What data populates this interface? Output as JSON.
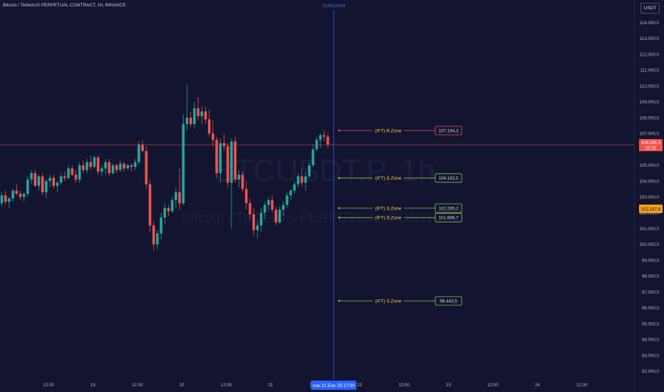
{
  "header": {
    "title": "Bitcoin / TetherUS PERPETUAL CONTRACT, 1h, BINANCE",
    "crosshair_date": "21/01/2024",
    "currency": "USDT"
  },
  "watermark": {
    "symbol": "BTCUSDT.P, 1h",
    "name": "Bitcoin / TetherUS PERPETUAL CONTRACT"
  },
  "colors": {
    "background": "#131530",
    "up": "#26a69a",
    "down": "#ef5350",
    "crosshair": "#2962ff",
    "zone_label": "#f5d142",
    "resistance": "#ef5350",
    "support": "#8bc34a",
    "current_price_bg": "#ef5350",
    "alt_price_bg": "#f59d1c"
  },
  "chart_data": {
    "type": "candlestick",
    "ylim": [
      91500,
      114800
    ],
    "y_ticks": [
      {
        "value": 92000,
        "label": "92.000,0"
      },
      {
        "value": 93000,
        "label": "93.000,0"
      },
      {
        "value": 94000,
        "label": "94.000,0"
      },
      {
        "value": 95000,
        "label": "95.000,0"
      },
      {
        "value": 96000,
        "label": "96.000,0"
      },
      {
        "value": 97000,
        "label": "97.000,0"
      },
      {
        "value": 98000,
        "label": "98.000,0"
      },
      {
        "value": 99000,
        "label": "99.000,0"
      },
      {
        "value": 100000,
        "label": "100.000,0"
      },
      {
        "value": 101000,
        "label": "101.000,0"
      },
      {
        "value": 102000,
        "label": "102.000,0"
      },
      {
        "value": 103000,
        "label": "103.000,0"
      },
      {
        "value": 104000,
        "label": "104.000,0"
      },
      {
        "value": 105000,
        "label": "105.000,0"
      },
      {
        "value": 107000,
        "label": "107.000,0"
      },
      {
        "value": 108000,
        "label": "108.000,0"
      },
      {
        "value": 109000,
        "label": "109.000,0"
      },
      {
        "value": 110000,
        "label": "110.000,0"
      },
      {
        "value": 111000,
        "label": "111.000,0"
      },
      {
        "value": 112000,
        "label": "112.000,0"
      },
      {
        "value": 113000,
        "label": "113.000,0"
      },
      {
        "value": 114000,
        "label": "114.000,0"
      }
    ],
    "x_ticks": [
      {
        "index": 12,
        "label": "12:00"
      },
      {
        "index": 24,
        "label": "19"
      },
      {
        "index": 36,
        "label": "12:00"
      },
      {
        "index": 48,
        "label": "20"
      },
      {
        "index": 60,
        "label": "12:00"
      },
      {
        "index": 72,
        "label": "21"
      },
      {
        "index": 84,
        "label": "12:00"
      },
      {
        "index": 96,
        "label": "22"
      },
      {
        "index": 108,
        "label": "12:00"
      },
      {
        "index": 120,
        "label": "23"
      },
      {
        "index": 132,
        "label": "12:00"
      },
      {
        "index": 144,
        "label": "24"
      },
      {
        "index": 156,
        "label": "12:00"
      }
    ],
    "crosshair": {
      "index": 89,
      "label": "mar 21 Ene '25   17:00"
    },
    "current_price": {
      "value": 106295.3,
      "label": "106.295,3",
      "countdown": "22:21"
    },
    "alt_price": {
      "value": 102247.6,
      "label": "102.247,6"
    },
    "zones": [
      {
        "label": "(IFT) R.Zone",
        "value": 107194.3,
        "value_label": "107.194,3",
        "kind": "resistance"
      },
      {
        "label": "(IFT) S.Zone",
        "value": 104192.5,
        "value_label": "104.192,5",
        "kind": "support"
      },
      {
        "label": "(IFT) S.Zone",
        "value": 102295.2,
        "value_label": "102.295,2",
        "kind": "support"
      },
      {
        "label": "(IFT) S.Zone",
        "value": 101696.7,
        "value_label": "101.696,7",
        "kind": "support"
      },
      {
        "label": "(IFT) S.Zone",
        "value": 96443.5,
        "value_label": "96.443,5",
        "kind": "support"
      }
    ],
    "candles": [
      [
        102600,
        103300,
        102400,
        103100
      ],
      [
        103100,
        103400,
        102500,
        102700
      ],
      [
        102700,
        103000,
        102300,
        102900
      ],
      [
        102900,
        103500,
        102700,
        103400
      ],
      [
        103400,
        103800,
        103100,
        103200
      ],
      [
        103200,
        103400,
        102800,
        103000
      ],
      [
        103000,
        103300,
        102700,
        103200
      ],
      [
        103200,
        104300,
        103000,
        104100
      ],
      [
        104100,
        104700,
        103800,
        104500
      ],
      [
        104500,
        104700,
        103600,
        103700
      ],
      [
        103700,
        104400,
        103400,
        104300
      ],
      [
        104300,
        104500,
        103100,
        103300
      ],
      [
        103300,
        104100,
        102900,
        104000
      ],
      [
        104000,
        104400,
        103600,
        104200
      ],
      [
        104200,
        104400,
        103500,
        103700
      ],
      [
        103700,
        104000,
        103300,
        103900
      ],
      [
        103900,
        104500,
        103800,
        104300
      ],
      [
        104300,
        104600,
        104000,
        104200
      ],
      [
        104200,
        105000,
        104100,
        104800
      ],
      [
        104800,
        105000,
        104300,
        104400
      ],
      [
        104400,
        104700,
        103900,
        104100
      ],
      [
        104100,
        105200,
        103900,
        105000
      ],
      [
        105000,
        105300,
        104500,
        104700
      ],
      [
        104700,
        105400,
        104500,
        105200
      ],
      [
        105200,
        105600,
        104700,
        104900
      ],
      [
        104900,
        105600,
        104800,
        105500
      ],
      [
        105500,
        105600,
        104400,
        104600
      ],
      [
        104600,
        105000,
        104300,
        104800
      ],
      [
        104800,
        105400,
        104400,
        105200
      ],
      [
        105200,
        105400,
        104300,
        104500
      ],
      [
        104500,
        105100,
        104400,
        105000
      ],
      [
        105000,
        105100,
        104500,
        104700
      ],
      [
        104700,
        105300,
        104600,
        105100
      ],
      [
        105100,
        105200,
        104600,
        104800
      ],
      [
        104800,
        105100,
        104700,
        105000
      ],
      [
        105000,
        105100,
        104600,
        104900
      ],
      [
        104900,
        105400,
        104700,
        105200
      ],
      [
        105200,
        106500,
        105000,
        106300
      ],
      [
        106300,
        106600,
        105800,
        105900
      ],
      [
        105900,
        106200,
        103500,
        103800
      ],
      [
        103800,
        104100,
        100800,
        101200
      ],
      [
        101200,
        101500,
        99600,
        100000
      ],
      [
        100000,
        100900,
        99700,
        100700
      ],
      [
        100700,
        102000,
        100300,
        101700
      ],
      [
        101700,
        102600,
        101300,
        102300
      ],
      [
        102300,
        102500,
        101800,
        102100
      ],
      [
        102100,
        103000,
        102000,
        102800
      ],
      [
        102800,
        103600,
        102300,
        103300
      ],
      [
        103300,
        104800,
        102200,
        102600
      ],
      [
        102600,
        108200,
        102500,
        107600
      ],
      [
        107600,
        110100,
        107200,
        108000
      ],
      [
        108000,
        108400,
        107400,
        107600
      ],
      [
        107600,
        109000,
        107300,
        108600
      ],
      [
        108600,
        109300,
        107800,
        108100
      ],
      [
        108100,
        108700,
        107600,
        108400
      ],
      [
        108400,
        108700,
        107600,
        107900
      ],
      [
        107900,
        108500,
        106800,
        107000
      ],
      [
        107000,
        107800,
        106200,
        106600
      ],
      [
        106600,
        106800,
        104200,
        104500
      ],
      [
        104500,
        106700,
        103900,
        106400
      ],
      [
        106400,
        107000,
        105900,
        106200
      ],
      [
        106200,
        106400,
        103600,
        103900
      ],
      [
        103900,
        106700,
        101000,
        106500
      ],
      [
        106500,
        106800,
        103900,
        104100
      ],
      [
        104100,
        104700,
        103600,
        104400
      ],
      [
        104400,
        104600,
        103300,
        103500
      ],
      [
        103500,
        104000,
        102200,
        102600
      ],
      [
        102600,
        102900,
        101600,
        101900
      ],
      [
        101900,
        102300,
        100500,
        100900
      ],
      [
        100900,
        101500,
        100400,
        101200
      ],
      [
        101200,
        102300,
        100800,
        102000
      ],
      [
        102000,
        102700,
        101600,
        102500
      ],
      [
        102500,
        103000,
        102100,
        102800
      ],
      [
        102800,
        103100,
        102000,
        102200
      ],
      [
        102200,
        102400,
        101200,
        101400
      ],
      [
        101400,
        102400,
        101300,
        102200
      ],
      [
        102200,
        102700,
        101800,
        102500
      ],
      [
        102500,
        103300,
        102300,
        103100
      ],
      [
        103100,
        103500,
        102800,
        103400
      ],
      [
        103400,
        104000,
        103200,
        103800
      ],
      [
        103800,
        104500,
        103600,
        104300
      ],
      [
        104300,
        104800,
        103700,
        103900
      ],
      [
        103900,
        104600,
        103400,
        104300
      ],
      [
        104300,
        105200,
        104200,
        105000
      ],
      [
        105000,
        106300,
        104900,
        106000
      ],
      [
        106000,
        106800,
        105900,
        106600
      ],
      [
        106600,
        107000,
        106100,
        106900
      ],
      [
        106900,
        107200,
        106500,
        106800
      ],
      [
        106800,
        107000,
        106100,
        106300
      ]
    ]
  }
}
